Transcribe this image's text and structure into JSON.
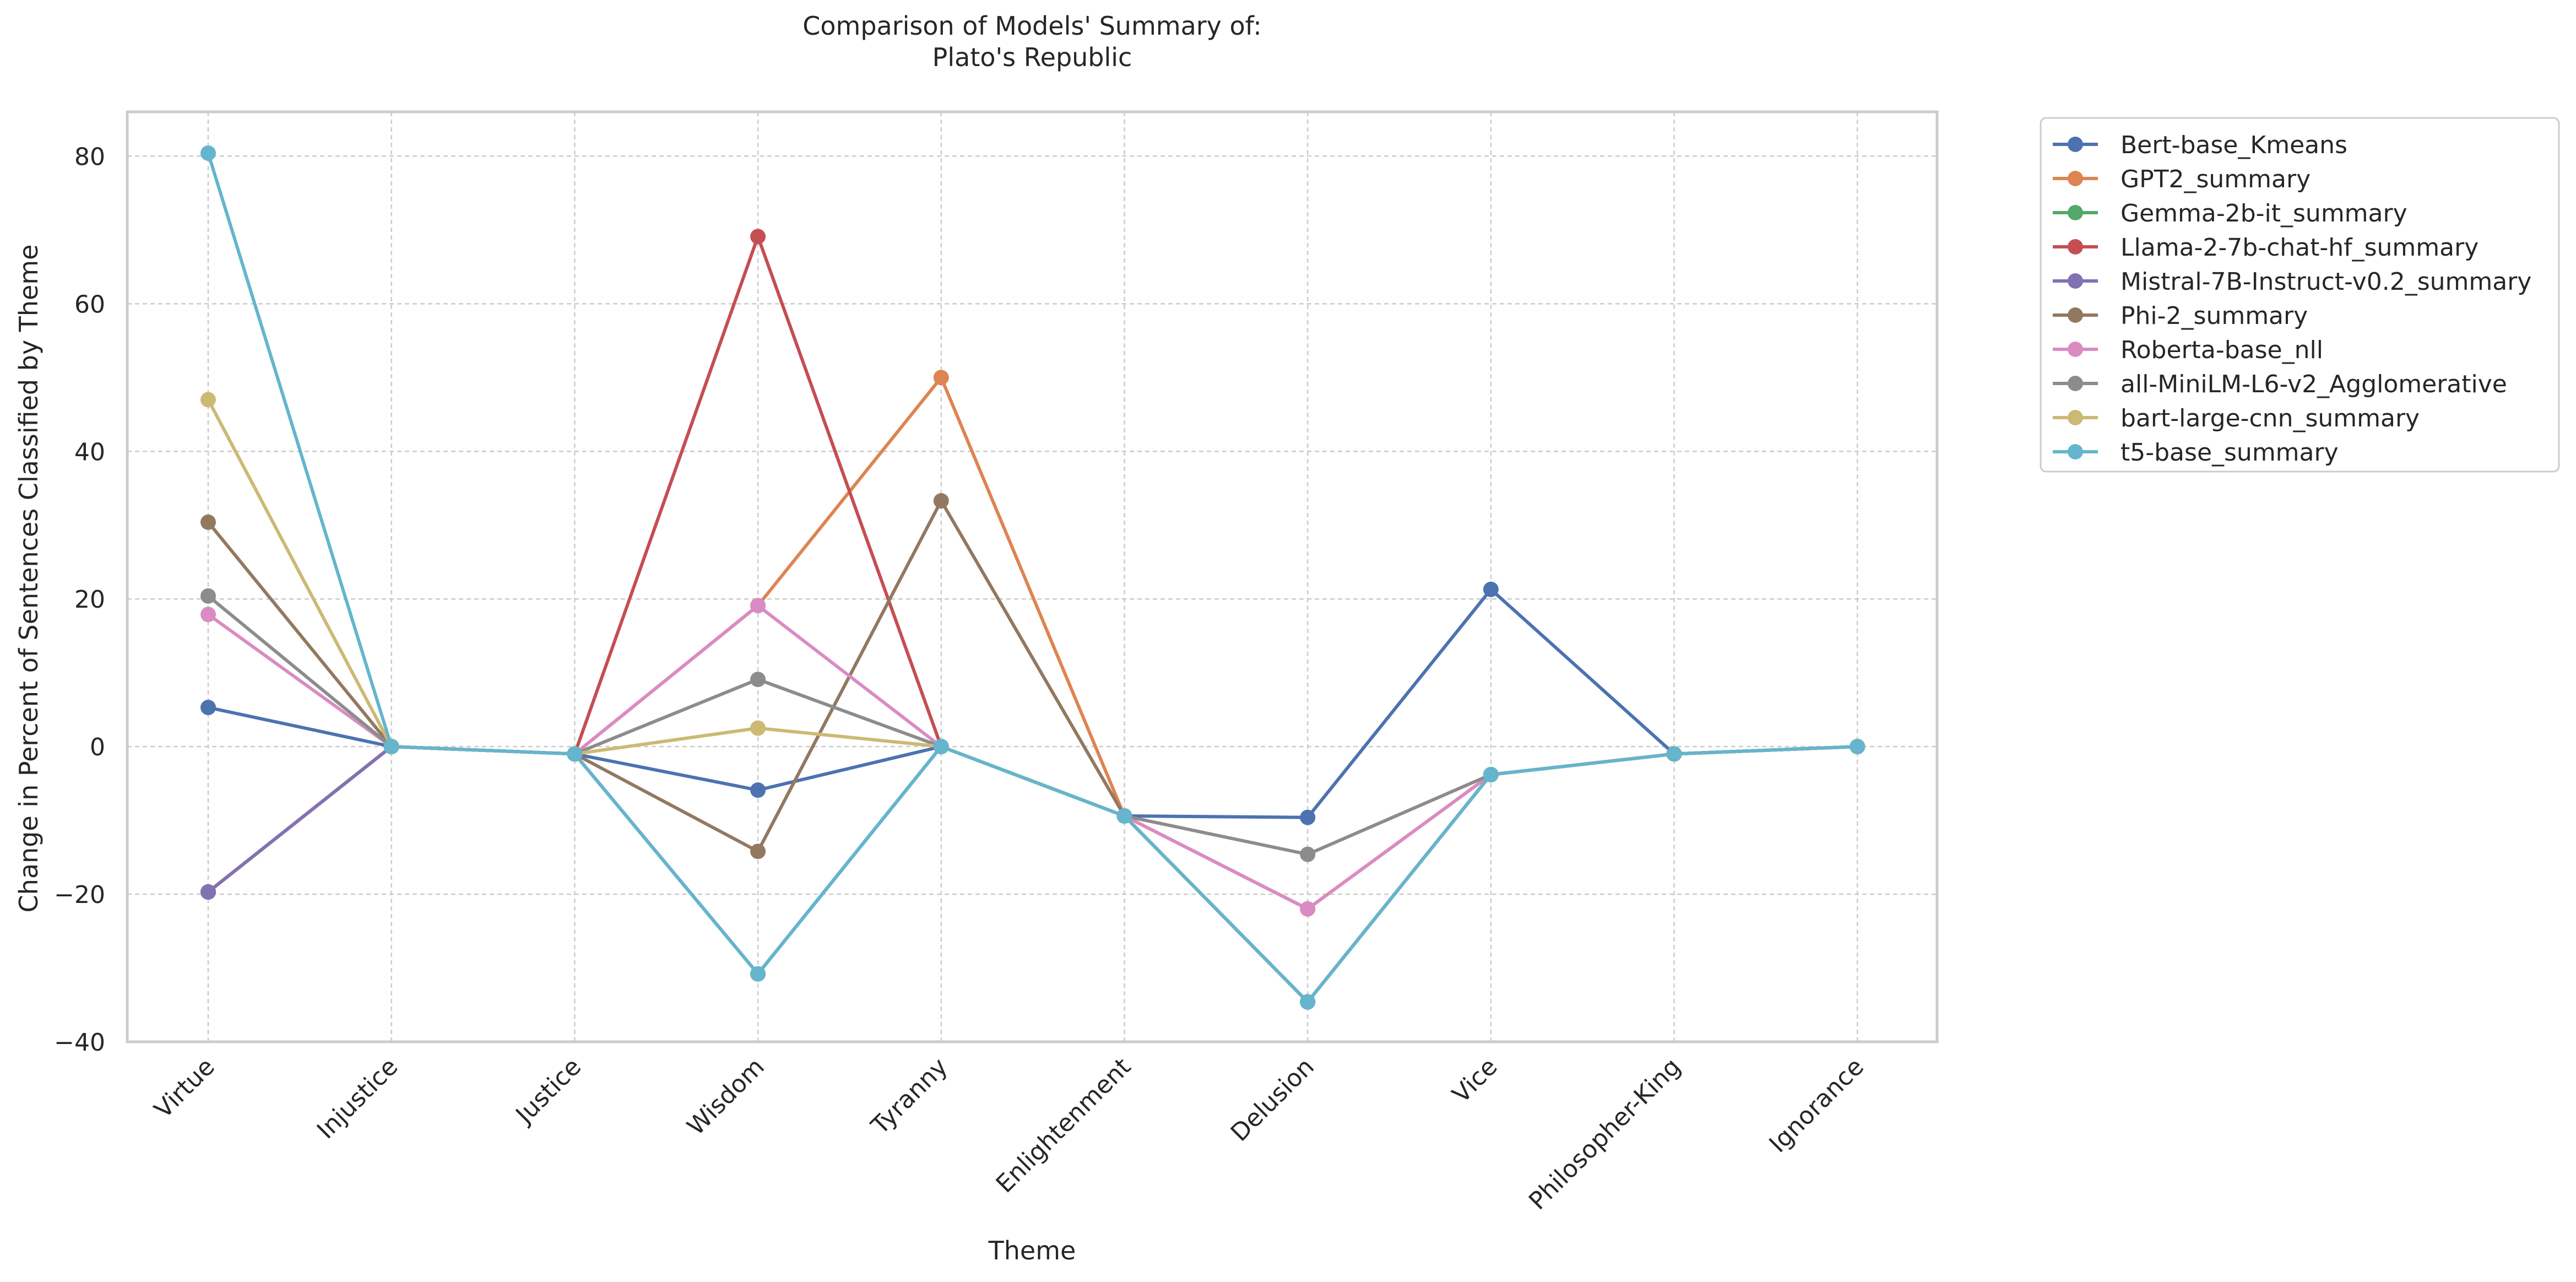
{
  "chart_data": {
    "type": "line",
    "title": "Comparison of Models' Summary of:\nPlato's Republic",
    "xlabel": "Theme",
    "ylabel": "Change in Percent of Sentences Classified by Theme",
    "ylim": [
      -40,
      86
    ],
    "yticks": [
      80,
      60,
      40,
      20,
      0,
      -20,
      -40
    ],
    "ytick_labels": [
      "80",
      "60",
      "40",
      "20",
      "0",
      "−20",
      "−40"
    ],
    "grid": true,
    "legend_position": "outside-top-right",
    "categories": [
      "Virtue",
      "Injustice",
      "Justice",
      "Wisdom",
      "Tyranny",
      "Enlightenment",
      "Delusion",
      "Vice",
      "Philosopher-King",
      "Ignorance"
    ],
    "series": [
      {
        "name": "Bert-base_Kmeans",
        "color": "#4c72b0",
        "values": [
          5.3,
          0,
          -1,
          -5.9,
          0,
          -9.4,
          -9.6,
          21.3,
          -1,
          0
        ]
      },
      {
        "name": "GPT2_summary",
        "color": "#dd8452",
        "values": [
          -19.7,
          0,
          -1,
          19.1,
          50.0,
          -9.4,
          -22.0,
          -3.8,
          -1,
          0
        ]
      },
      {
        "name": "Gemma-2b-it_summary",
        "color": "#55a868",
        "values": [
          -19.7,
          0,
          -1,
          -30.8,
          0,
          -9.4,
          -34.6,
          -3.8,
          -1,
          0
        ]
      },
      {
        "name": "Llama-2-7b-chat-hf_summary",
        "color": "#c44e52",
        "values": [
          -19.7,
          0,
          -1,
          69.1,
          0,
          -9.4,
          -34.6,
          -3.8,
          -1,
          0
        ]
      },
      {
        "name": "Mistral-7B-Instruct-v0.2_summary",
        "color": "#8172b3",
        "values": [
          -19.7,
          0,
          -1,
          -30.8,
          0,
          -9.4,
          -34.6,
          -3.8,
          -1,
          0
        ]
      },
      {
        "name": "Phi-2_summary",
        "color": "#937860",
        "values": [
          30.4,
          0,
          -1,
          -14.2,
          33.3,
          -9.4,
          -34.6,
          -3.8,
          -1,
          0
        ]
      },
      {
        "name": "Roberta-base_nll",
        "color": "#da8bc3",
        "values": [
          17.9,
          0,
          -1,
          19.1,
          0,
          -9.4,
          -22.0,
          -3.8,
          -1,
          0
        ]
      },
      {
        "name": "all-MiniLM-L6-v2_Agglomerative",
        "color": "#8c8c8c",
        "values": [
          20.4,
          0,
          -1,
          9.1,
          0,
          -9.4,
          -14.6,
          -3.8,
          -1,
          0
        ]
      },
      {
        "name": "bart-large-cnn_summary",
        "color": "#ccb974",
        "values": [
          47.0,
          0,
          -1,
          2.5,
          0,
          -9.4,
          -34.6,
          -3.8,
          -1,
          0
        ]
      },
      {
        "name": "t5-base_summary",
        "color": "#64b5cd",
        "values": [
          80.4,
          0,
          -1,
          -30.8,
          0,
          -9.4,
          -34.6,
          -3.8,
          -1,
          0
        ]
      }
    ]
  }
}
